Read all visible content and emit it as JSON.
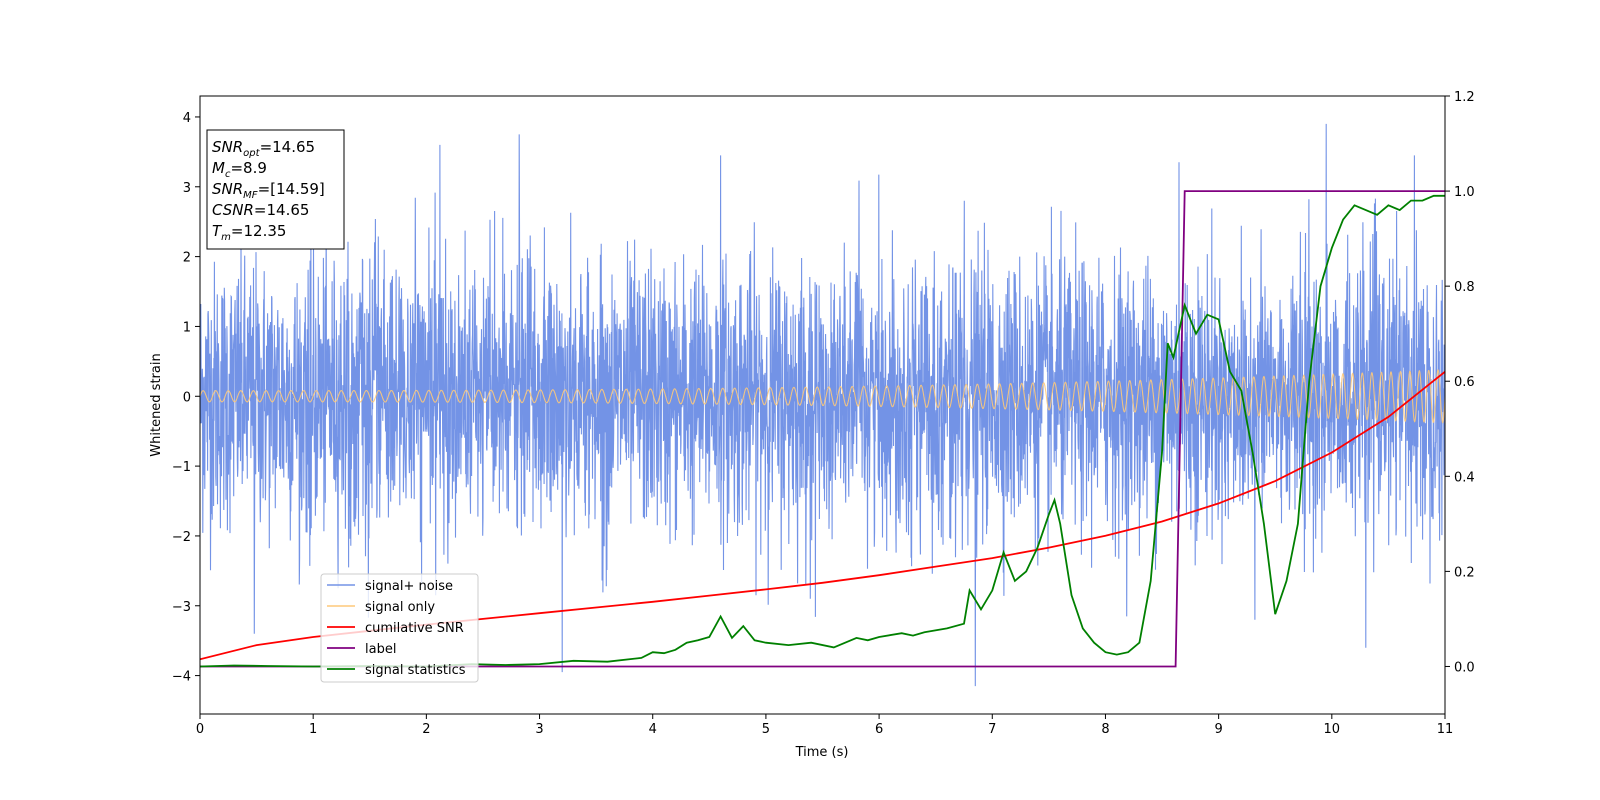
{
  "chart_data": {
    "type": "line",
    "xlabel": "Time (s)",
    "ylabel": "Whitened strain",
    "ylabel_right": "",
    "xlim": [
      0,
      11
    ],
    "ylim_left": [
      -4.55,
      4.3
    ],
    "ylim_right": [
      -0.1,
      1.2
    ],
    "x_ticks": [
      0,
      1,
      2,
      3,
      4,
      5,
      6,
      7,
      8,
      9,
      10,
      11
    ],
    "y_ticks_left": [
      -4,
      -3,
      -2,
      -1,
      0,
      1,
      2,
      3,
      4
    ],
    "y_ticks_right": [
      0.0,
      0.2,
      0.4,
      0.6,
      0.8,
      1.0,
      1.2
    ],
    "grid": false,
    "legend_position": "lower-left",
    "info_box": {
      "position": "upper-left",
      "lines": [
        {
          "sym": "SNR",
          "sub": "opt",
          "val": "=14.65"
        },
        {
          "sym": "M",
          "sub": "c",
          "val": "=8.9"
        },
        {
          "sym": "SNR",
          "sub": "MF",
          "val": "=[14.59]"
        },
        {
          "sym": "CSNR",
          "sub": "",
          "val": "=14.65"
        },
        {
          "sym": "T",
          "sub": "m",
          "val": "=12.35"
        }
      ]
    },
    "series": [
      {
        "name": "signal+ noise",
        "axis": "left",
        "color": "#7393e6",
        "description_kind": "noisy",
        "envelope_lo": -2.3,
        "envelope_hi": 2.3,
        "peaks": [
          {
            "x": 2.82,
            "y": 3.75
          },
          {
            "x": 9.95,
            "y": 3.9
          },
          {
            "x": 2.12,
            "y": 3.6
          },
          {
            "x": 6.85,
            "y": -4.15
          },
          {
            "x": 3.2,
            "y": -3.95
          },
          {
            "x": 10.3,
            "y": -3.6
          },
          {
            "x": 0.48,
            "y": -3.4
          },
          {
            "x": 9.32,
            "y": -3.2
          },
          {
            "x": 4.6,
            "y": 3.45
          },
          {
            "x": 8.65,
            "y": 3.35
          },
          {
            "x": 10.73,
            "y": 3.45
          }
        ]
      },
      {
        "name": "signal only",
        "axis": "left",
        "color": "#fdc97a",
        "description_kind": "chirp",
        "amp_start": 0.08,
        "amp_end": 0.38
      },
      {
        "name": "cumilative SNR",
        "axis": "right",
        "color": "#ff0000",
        "x": [
          0,
          0.5,
          1,
          1.5,
          2,
          2.5,
          3,
          3.5,
          4,
          4.5,
          5,
          5.5,
          6,
          6.5,
          7,
          7.5,
          8,
          8.5,
          9,
          9.5,
          10,
          10.5,
          11
        ],
        "y": [
          0.015,
          0.045,
          0.062,
          0.075,
          0.088,
          0.1,
          0.112,
          0.124,
          0.136,
          0.149,
          0.162,
          0.176,
          0.192,
          0.21,
          0.228,
          0.25,
          0.275,
          0.305,
          0.343,
          0.39,
          0.45,
          0.525,
          0.62
        ]
      },
      {
        "name": "label",
        "axis": "right",
        "color": "#800080",
        "x": [
          0,
          8.62,
          8.7,
          11
        ],
        "y": [
          0,
          0,
          1,
          1
        ]
      },
      {
        "name": "signal statistics",
        "axis": "right",
        "color": "#008000",
        "x": [
          0,
          0.3,
          0.6,
          1.0,
          1.5,
          2.0,
          2.4,
          2.7,
          3.0,
          3.3,
          3.6,
          3.9,
          4.0,
          4.1,
          4.2,
          4.3,
          4.4,
          4.5,
          4.6,
          4.7,
          4.8,
          4.9,
          5.0,
          5.2,
          5.4,
          5.6,
          5.8,
          5.9,
          6.0,
          6.2,
          6.3,
          6.4,
          6.6,
          6.75,
          6.8,
          6.9,
          7.0,
          7.1,
          7.2,
          7.3,
          7.4,
          7.5,
          7.55,
          7.6,
          7.7,
          7.8,
          7.9,
          8.0,
          8.1,
          8.2,
          8.3,
          8.4,
          8.5,
          8.55,
          8.6,
          8.7,
          8.8,
          8.9,
          9.0,
          9.1,
          9.2,
          9.3,
          9.4,
          9.5,
          9.6,
          9.7,
          9.8,
          9.9,
          10.0,
          10.1,
          10.2,
          10.3,
          10.4,
          10.5,
          10.6,
          10.7,
          10.8,
          10.9,
          11.0
        ],
        "y": [
          0.0,
          0.002,
          0.001,
          0.0,
          0.001,
          0.0,
          0.005,
          0.003,
          0.005,
          0.012,
          0.01,
          0.018,
          0.03,
          0.028,
          0.035,
          0.05,
          0.055,
          0.062,
          0.105,
          0.06,
          0.085,
          0.055,
          0.05,
          0.045,
          0.05,
          0.04,
          0.06,
          0.055,
          0.062,
          0.07,
          0.065,
          0.072,
          0.08,
          0.09,
          0.16,
          0.12,
          0.16,
          0.24,
          0.18,
          0.2,
          0.25,
          0.32,
          0.35,
          0.3,
          0.15,
          0.08,
          0.05,
          0.03,
          0.025,
          0.03,
          0.05,
          0.18,
          0.45,
          0.68,
          0.65,
          0.76,
          0.7,
          0.74,
          0.73,
          0.62,
          0.58,
          0.45,
          0.3,
          0.11,
          0.18,
          0.3,
          0.6,
          0.8,
          0.88,
          0.94,
          0.97,
          0.96,
          0.95,
          0.97,
          0.96,
          0.98,
          0.98,
          0.99,
          0.99
        ]
      }
    ]
  }
}
